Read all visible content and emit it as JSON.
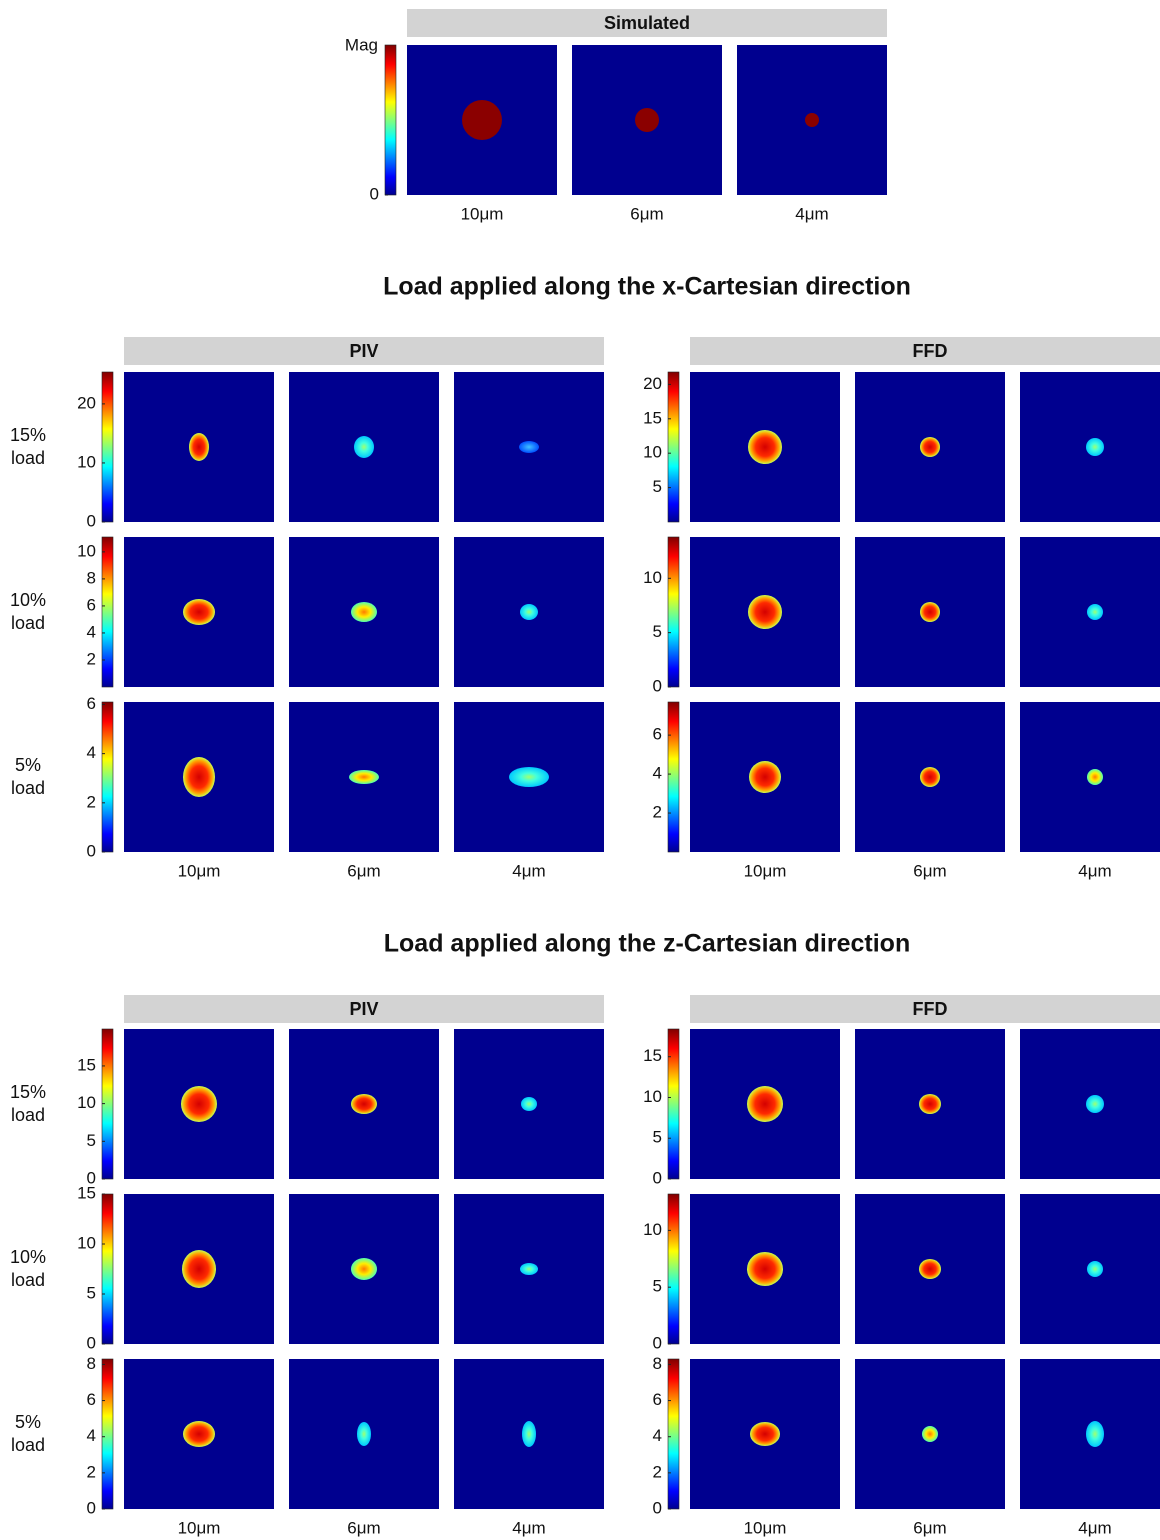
{
  "simulated": {
    "header": "Simulated",
    "colorbar": {
      "label": "Mag",
      "ticks": [
        0
      ]
    },
    "columns": [
      "10μm",
      "6μm",
      "4μm"
    ]
  },
  "sections": [
    {
      "title": "Load applied along the x-Cartesian direction",
      "rows": [
        "15%\nload",
        "10%\nload",
        "5%\nload"
      ],
      "columns": [
        "10μm",
        "6μm",
        "4μm"
      ],
      "groups": [
        {
          "header": "PIV",
          "colorbars": [
            {
              "lim": [
                0,
                25.4
              ],
              "ticks": [
                0,
                10,
                20
              ]
            },
            {
              "lim": [
                0,
                11.1
              ],
              "ticks": [
                2,
                4,
                6,
                8,
                10
              ]
            },
            {
              "lim": [
                0,
                6.1
              ],
              "ticks": [
                0,
                2,
                4,
                6
              ]
            }
          ]
        },
        {
          "header": "FFD",
          "colorbars": [
            {
              "lim": [
                0,
                21.8
              ],
              "ticks": [
                5,
                10,
                15,
                20
              ]
            },
            {
              "lim": [
                0,
                13.8
              ],
              "ticks": [
                0,
                5,
                10
              ]
            },
            {
              "lim": [
                0,
                7.7
              ],
              "ticks": [
                2,
                4,
                6
              ]
            }
          ]
        }
      ]
    },
    {
      "title": "Load applied along the z-Cartesian direction",
      "rows": [
        "15%\nload",
        "10%\nload",
        "5%\nload"
      ],
      "columns": [
        "10μm",
        "6μm",
        "4μm"
      ],
      "groups": [
        {
          "header": "PIV",
          "colorbars": [
            {
              "lim": [
                0,
                19.9
              ],
              "ticks": [
                0,
                5,
                10,
                15
              ]
            },
            {
              "lim": [
                0,
                15
              ],
              "ticks": [
                0,
                5,
                10,
                15
              ]
            },
            {
              "lim": [
                0,
                8.3
              ],
              "ticks": [
                0,
                2,
                4,
                6,
                8
              ]
            }
          ]
        },
        {
          "header": "FFD",
          "colorbars": [
            {
              "lim": [
                0,
                18.4
              ],
              "ticks": [
                0,
                5,
                10,
                15
              ]
            },
            {
              "lim": [
                0,
                13.2
              ],
              "ticks": [
                0,
                5,
                10
              ]
            },
            {
              "lim": [
                0,
                8.3
              ],
              "ticks": [
                0,
                2,
                4,
                6,
                8
              ]
            }
          ]
        }
      ]
    }
  ]
}
